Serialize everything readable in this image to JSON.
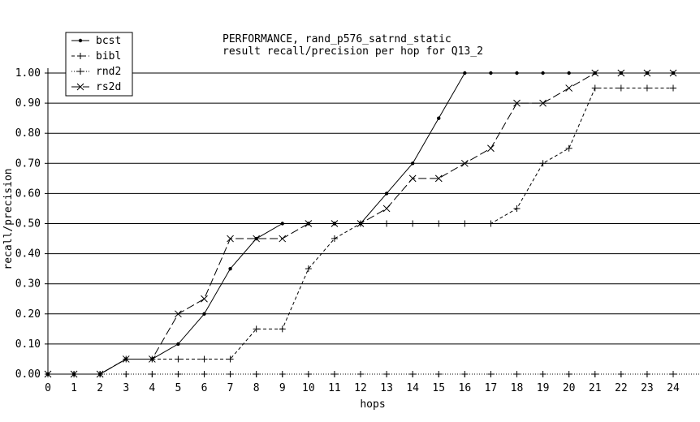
{
  "chart_data": {
    "type": "line",
    "title": "PERFORMANCE, rand_p576_satrnd_static",
    "subtitle": "result recall/precision per hop for Q13_2",
    "xlabel": "hops",
    "ylabel": "recall/precision",
    "x": [
      0,
      1,
      2,
      3,
      4,
      5,
      6,
      7,
      8,
      9,
      10,
      11,
      12,
      13,
      14,
      15,
      16,
      17,
      18,
      19,
      20,
      21,
      22,
      23,
      24
    ],
    "xlim": [
      0,
      24
    ],
    "ylim": [
      0,
      1.0
    ],
    "yticks": [
      "0.00",
      "0.10",
      "0.20",
      "0.30",
      "0.40",
      "0.50",
      "0.60",
      "0.70",
      "0.80",
      "0.90",
      "1.00"
    ],
    "grid": "horizontal",
    "legend_position": "top-left",
    "series": [
      {
        "name": "bcst",
        "marker": "dot",
        "dash": "solid",
        "values": [
          0,
          0,
          0,
          0.05,
          0.05,
          0.1,
          0.2,
          0.35,
          0.45,
          0.5,
          0.5,
          0.5,
          0.5,
          0.6,
          0.7,
          0.85,
          1.0,
          1.0,
          1.0,
          1.0,
          1.0,
          1.0,
          1.0,
          1.0,
          1.0
        ]
      },
      {
        "name": "bibl",
        "marker": "plus",
        "dash": "dashed",
        "values": [
          0,
          0,
          0,
          0.05,
          0.05,
          0.05,
          0.05,
          0.05,
          0.15,
          0.15,
          0.35,
          0.45,
          0.5,
          0.5,
          0.5,
          0.5,
          0.5,
          0.5,
          0.55,
          0.7,
          0.75,
          0.95,
          0.95,
          0.95,
          0.95
        ]
      },
      {
        "name": "rnd2",
        "marker": "plus",
        "dash": "dotted",
        "values": [
          0,
          0,
          0,
          0,
          0,
          0,
          0,
          0,
          0,
          0,
          0,
          0,
          0,
          0,
          0,
          0,
          0,
          0,
          0,
          0,
          0,
          0,
          0,
          0,
          0
        ]
      },
      {
        "name": "rs2d",
        "marker": "cross",
        "dash": "longdash",
        "values": [
          0,
          0,
          0,
          0.05,
          0.05,
          0.2,
          0.25,
          0.45,
          0.45,
          0.45,
          0.5,
          0.5,
          0.5,
          0.55,
          0.65,
          0.65,
          0.7,
          0.75,
          0.9,
          0.9,
          0.95,
          1.0,
          1.0,
          1.0,
          1.0
        ]
      }
    ]
  }
}
